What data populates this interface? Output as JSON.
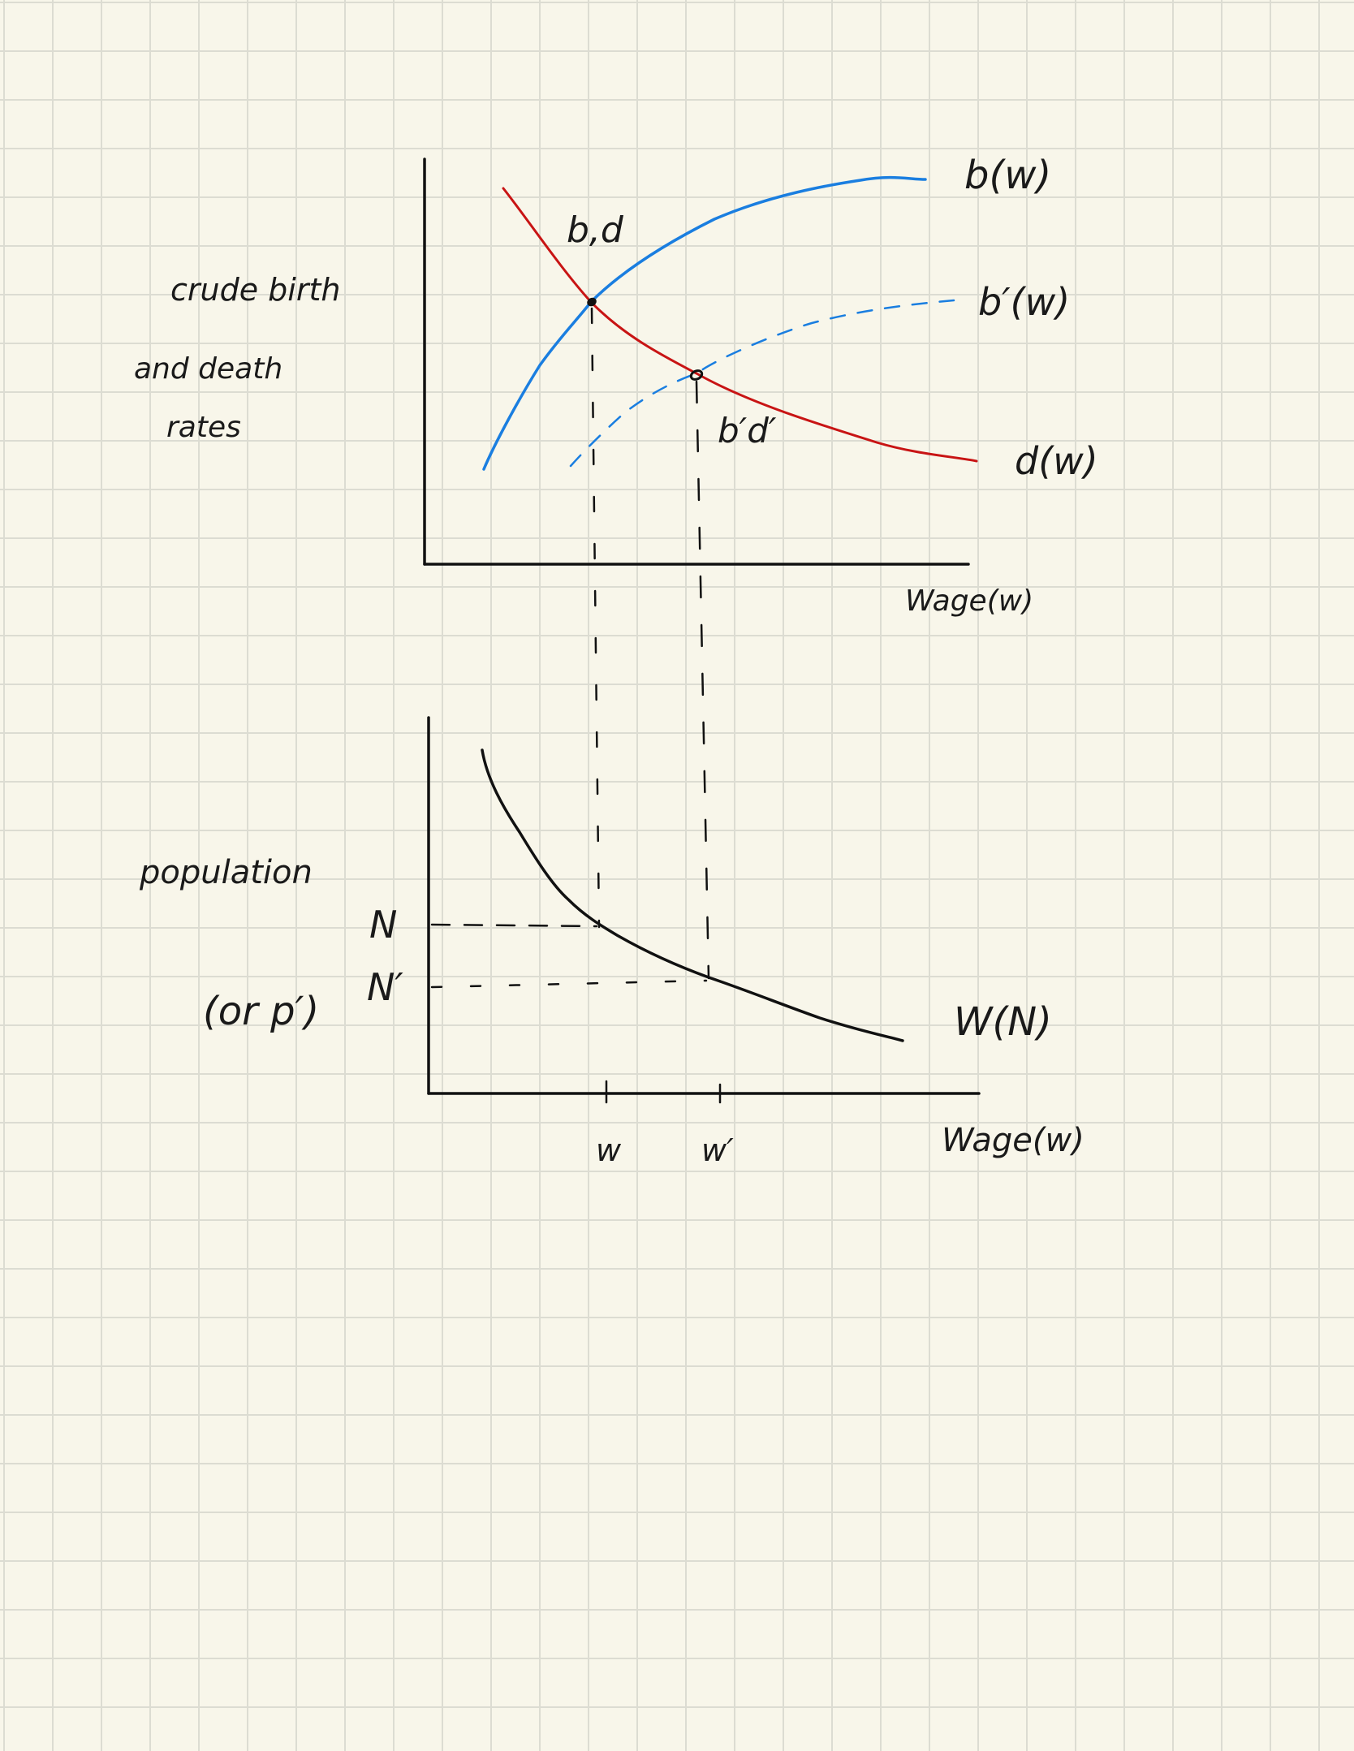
{
  "labels": {
    "b_w": "b(w)",
    "b_prime_w": "b′(w)",
    "d_w": "d(w)",
    "bd": "b,d",
    "b_prime_d_prime": "b′d′",
    "crude_birth": "crude birth",
    "and_death": "and death",
    "rates": "rates",
    "wage_top": "Wage(w)",
    "population": "population",
    "or_p": "(or p′)",
    "N": "N",
    "N_prime": "N′",
    "W_N": "W(N)",
    "w": "w",
    "w_prime": "w′",
    "wage_bottom": "Wage(w)"
  },
  "colors": {
    "birth": "#1a7ee0",
    "death": "#c81414",
    "ink": "#111111",
    "paper": "#f8f6ea",
    "grid": "#dcdcd2"
  }
}
